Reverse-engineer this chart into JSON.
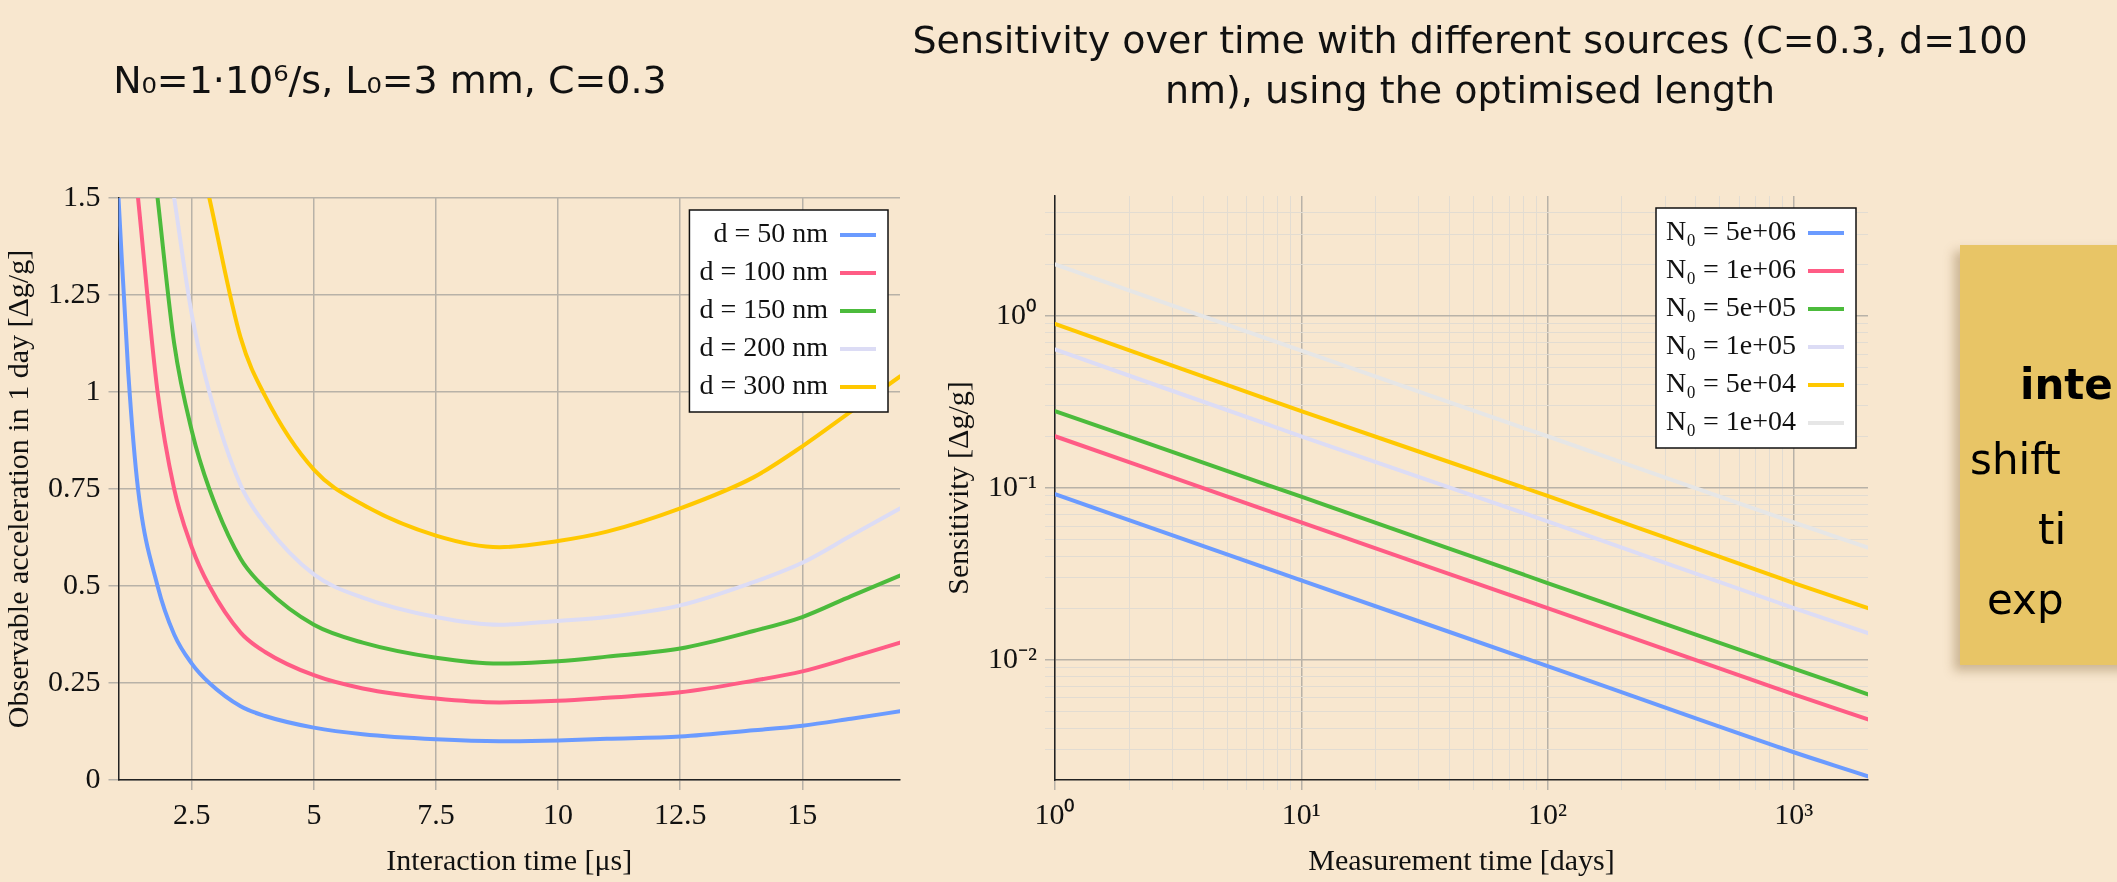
{
  "chart_data": [
    {
      "type": "line",
      "title": "N₀=1·10⁶/s, L₀=3 mm, C=0.3",
      "xlabel": "Interaction time [μs]",
      "ylabel": "Observable acceleration in 1 day [Δg/g]",
      "xlim": [
        1,
        17
      ],
      "ylim": [
        0,
        1.5
      ],
      "xticks": [
        2.5,
        5,
        7.5,
        10,
        12.5,
        15
      ],
      "yticks": [
        0,
        0.25,
        0.5,
        0.75,
        1,
        1.25,
        1.5
      ],
      "grid": true,
      "legend": "top right",
      "marker": "none",
      "line_style": "solid",
      "series": [
        {
          "name": "d = 50 nm",
          "color": "#6b9bff",
          "x": [
            1,
            1.2,
            1.4,
            1.8,
            2.14,
            2.5,
            2.86,
            3.5,
            4,
            5,
            6,
            7.5,
            8.8,
            10,
            11,
            12.5,
            14,
            15,
            16,
            17
          ],
          "values": [
            1.5,
            1.05,
            0.75,
            0.5,
            0.375,
            0.3,
            0.25,
            0.19,
            0.165,
            0.135,
            0.118,
            0.105,
            0.1,
            0.102,
            0.106,
            0.112,
            0.128,
            0.14,
            0.158,
            0.177
          ]
        },
        {
          "name": "d = 100 nm",
          "color": "#ff5c85",
          "x": [
            1.4,
            1.8,
            2.14,
            2.5,
            2.86,
            3.5,
            4,
            5,
            6,
            7.5,
            8.8,
            10,
            11,
            12.5,
            14,
            15,
            16,
            17
          ],
          "values": [
            1.5,
            1.0,
            0.75,
            0.6,
            0.5,
            0.38,
            0.33,
            0.27,
            0.236,
            0.21,
            0.2,
            0.204,
            0.212,
            0.226,
            0.256,
            0.28,
            0.316,
            0.354
          ]
        },
        {
          "name": "d = 150 nm",
          "color": "#4cbb3c",
          "x": [
            1.8,
            2.14,
            2.5,
            2.86,
            3.5,
            4,
            5,
            6,
            7.5,
            8.8,
            10,
            11,
            12.5,
            14,
            15,
            16,
            17
          ],
          "values": [
            1.5,
            1.125,
            0.9,
            0.75,
            0.57,
            0.495,
            0.4,
            0.354,
            0.315,
            0.3,
            0.306,
            0.318,
            0.339,
            0.384,
            0.42,
            0.474,
            0.527
          ]
        },
        {
          "name": "d = 200 nm",
          "color": "#dcdcf5",
          "x": [
            2.14,
            2.5,
            2.86,
            3.5,
            4,
            5,
            6,
            7.5,
            8.8,
            10,
            11,
            12.5,
            14,
            15,
            16,
            17
          ],
          "values": [
            1.5,
            1.2,
            1.0,
            0.76,
            0.66,
            0.53,
            0.47,
            0.42,
            0.4,
            0.41,
            0.42,
            0.45,
            0.51,
            0.56,
            0.63,
            0.7
          ]
        },
        {
          "name": "d = 300 nm",
          "color": "#ffc800",
          "x": [
            2.86,
            3.5,
            4,
            5,
            6,
            7.5,
            8.8,
            10,
            11,
            12.5,
            14,
            15,
            16,
            17
          ],
          "values": [
            1.5,
            1.14,
            0.99,
            0.8,
            0.71,
            0.63,
            0.6,
            0.616,
            0.64,
            0.7,
            0.78,
            0.86,
            0.95,
            1.04
          ]
        }
      ]
    },
    {
      "type": "line",
      "title": "Sensitivity over time with different sources (C=0.3, d=100 nm), using the optimised length",
      "xlabel": "Measurement time [days]",
      "ylabel": "Sensitivity [Δg/g]",
      "log": "xy",
      "xlim": [
        1,
        2000
      ],
      "ylim": [
        0.002,
        5
      ],
      "xticks": [
        {
          "value": 1,
          "label": "10⁰"
        },
        {
          "value": 2,
          "label": null
        },
        {
          "value": 3,
          "label": null
        },
        {
          "value": 4,
          "label": null
        },
        {
          "value": 5,
          "label": null
        },
        {
          "value": 6,
          "label": null
        },
        {
          "value": 7,
          "label": null
        },
        {
          "value": 8,
          "label": null
        },
        {
          "value": 9,
          "label": null
        },
        {
          "value": 10,
          "label": "10¹"
        },
        {
          "value": 20,
          "label": null
        },
        {
          "value": 30,
          "label": null
        },
        {
          "value": 40,
          "label": null
        },
        {
          "value": 50,
          "label": null
        },
        {
          "value": 60,
          "label": null
        },
        {
          "value": 70,
          "label": null
        },
        {
          "value": 80,
          "label": null
        },
        {
          "value": 90,
          "label": null
        },
        {
          "value": 100,
          "label": "10²"
        },
        {
          "value": 200,
          "label": null
        },
        {
          "value": 300,
          "label": null
        },
        {
          "value": 400,
          "label": null
        },
        {
          "value": 500,
          "label": null
        },
        {
          "value": 600,
          "label": null
        },
        {
          "value": 700,
          "label": null
        },
        {
          "value": 800,
          "label": null
        },
        {
          "value": 900,
          "label": null
        },
        {
          "value": 1000,
          "label": "10³"
        }
      ],
      "yticks": [
        {
          "value": 0.003,
          "label": null
        },
        {
          "value": 0.004,
          "label": null
        },
        {
          "value": 0.005,
          "label": null
        },
        {
          "value": 0.006,
          "label": null
        },
        {
          "value": 0.007,
          "label": null
        },
        {
          "value": 0.008,
          "label": null
        },
        {
          "value": 0.009,
          "label": null
        },
        {
          "value": 0.01,
          "label": "10⁻²"
        },
        {
          "value": 0.02,
          "label": null
        },
        {
          "value": 0.03,
          "label": null
        },
        {
          "value": 0.04,
          "label": null
        },
        {
          "value": 0.05,
          "label": null
        },
        {
          "value": 0.06,
          "label": null
        },
        {
          "value": 0.07,
          "label": null
        },
        {
          "value": 0.08,
          "label": null
        },
        {
          "value": 0.09,
          "label": null
        },
        {
          "value": 0.1,
          "label": "10⁻¹"
        },
        {
          "value": 0.2,
          "label": null
        },
        {
          "value": 0.3,
          "label": null
        },
        {
          "value": 0.4,
          "label": null
        },
        {
          "value": 0.5,
          "label": null
        },
        {
          "value": 0.6,
          "label": null
        },
        {
          "value": 0.7,
          "label": null
        },
        {
          "value": 0.8,
          "label": null
        },
        {
          "value": 0.9,
          "label": null
        },
        {
          "value": 1,
          "label": "10⁰"
        },
        {
          "value": 2,
          "label": null
        },
        {
          "value": 3,
          "label": null
        },
        {
          "value": 4,
          "label": null
        }
      ],
      "grid": true,
      "legend": "top right",
      "marker": "none",
      "line_style": "solid",
      "x": [
        1,
        10,
        100,
        1000,
        2000
      ],
      "series": [
        {
          "name": "N₀ = 5e+06",
          "color": "#6b9bff",
          "values": [
            0.092,
            0.029,
            0.0092,
            0.0029,
            0.0021
          ]
        },
        {
          "name": "N₀ = 1e+06",
          "color": "#ff5c85",
          "values": [
            0.2,
            0.063,
            0.02,
            0.0063,
            0.0045
          ]
        },
        {
          "name": "N₀ = 5e+05",
          "color": "#4cbb3c",
          "values": [
            0.28,
            0.089,
            0.028,
            0.0089,
            0.0063
          ]
        },
        {
          "name": "N₀ = 1e+05",
          "color": "#dcdcf5",
          "values": [
            0.64,
            0.2,
            0.064,
            0.02,
            0.0143
          ]
        },
        {
          "name": "N₀ = 5e+04",
          "color": "#ffc800",
          "values": [
            0.9,
            0.28,
            0.09,
            0.028,
            0.02
          ]
        },
        {
          "name": "N₀ = 1e+04",
          "color": "#e6e6e6",
          "values": [
            2.0,
            0.63,
            0.2,
            0.063,
            0.045
          ]
        }
      ]
    },
    {
      "type": "other",
      "annotations": [
        "inte",
        "shift",
        "ti",
        "exp"
      ]
    }
  ]
}
